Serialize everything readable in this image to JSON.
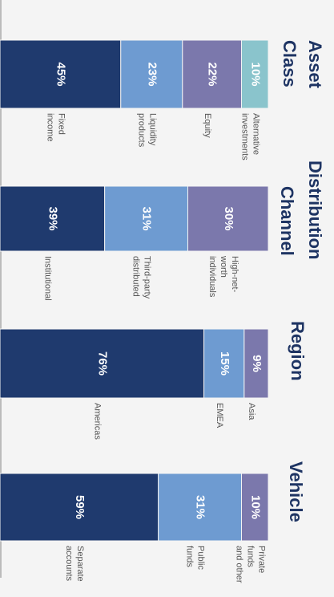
{
  "chart_data": [
    {
      "type": "bar",
      "title": [
        "Asset",
        "Class"
      ],
      "categories": [
        [
          "Fixed",
          "income"
        ],
        [
          "Liquidity",
          "products"
        ],
        [
          "Equity"
        ],
        [
          "Alternative",
          "investments"
        ]
      ],
      "values": [
        45,
        23,
        22,
        10
      ],
      "value_labels": [
        "45%",
        "23%",
        "22%",
        "10%"
      ],
      "colors": [
        "#1f3a6e",
        "#6e9bd1",
        "#7b78ac",
        "#8ac4cc"
      ],
      "ylim": [
        0,
        100
      ]
    },
    {
      "type": "bar",
      "title": [
        "Distribution",
        "Channel"
      ],
      "categories": [
        [
          "Institutional"
        ],
        [
          "Third-party",
          "distributed"
        ],
        [
          "High-net-",
          "worth",
          "individuals"
        ]
      ],
      "values": [
        39,
        31,
        30
      ],
      "value_labels": [
        "39%",
        "31%",
        "30%"
      ],
      "colors": [
        "#1f3a6e",
        "#6e9bd1",
        "#7b78ac"
      ],
      "ylim": [
        0,
        100
      ]
    },
    {
      "type": "bar",
      "title": [
        "Region"
      ],
      "categories": [
        [
          "Americas"
        ],
        [
          "EMEA"
        ],
        [
          "Asia"
        ]
      ],
      "values": [
        76,
        15,
        9
      ],
      "value_labels": [
        "76%",
        "15%",
        "9%"
      ],
      "colors": [
        "#1f3a6e",
        "#6e9bd1",
        "#7b78ac"
      ],
      "ylim": [
        0,
        100
      ]
    },
    {
      "type": "bar",
      "title": [
        "Vehicle"
      ],
      "categories": [
        [
          "Separate",
          "accounts"
        ],
        [
          "Public",
          "funds"
        ],
        [
          "Private",
          "funds",
          "and other"
        ]
      ],
      "values": [
        59,
        31,
        10
      ],
      "value_labels": [
        "59%",
        "31%",
        "10%"
      ],
      "colors": [
        "#1f3a6e",
        "#6e9bd1",
        "#7b78ac"
      ],
      "ylim": [
        0,
        100
      ]
    }
  ]
}
